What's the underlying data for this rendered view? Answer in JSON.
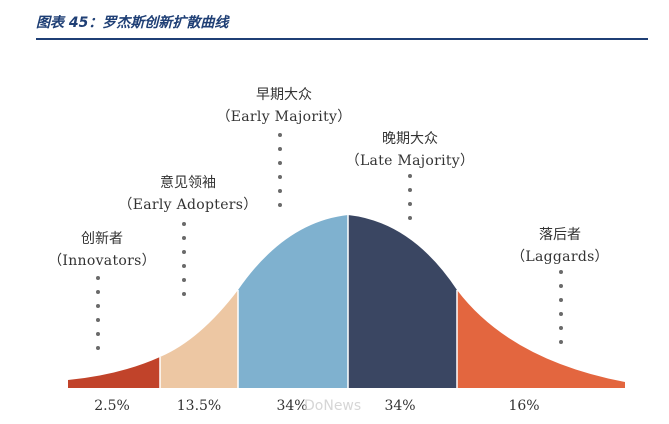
{
  "figure": {
    "title": "图表 45：罗杰斯创新扩散曲线"
  },
  "segments": [
    {
      "cn": "创新者",
      "en": "（Innovators）",
      "pct": "2.5%",
      "color": "#c1432a"
    },
    {
      "cn": "意见领袖",
      "en": "（Early Adopters）",
      "pct": "13.5%",
      "color": "#edc7a3"
    },
    {
      "cn": "早期大众",
      "en": "（Early Majority）",
      "pct": "34%",
      "color": "#7fb1cf"
    },
    {
      "cn": "晚期大众",
      "en": "（Late Majority）",
      "pct": "34%",
      "color": "#3a4662"
    },
    {
      "cn": "落后者",
      "en": "（Laggards）",
      "pct": "16%",
      "color": "#e3663f"
    }
  ],
  "watermark": "DoNews"
}
